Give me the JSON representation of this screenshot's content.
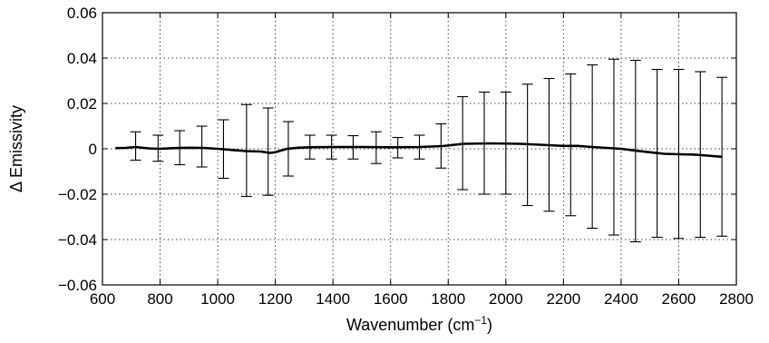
{
  "chart_data": {
    "type": "line",
    "xlabel": "Wavenumber (cm",
    "xlabel_sup": "−1",
    "xlabel_close": ")",
    "ylabel": "Δ Emissivity",
    "xlim": [
      600,
      2800
    ],
    "ylim": [
      -0.06,
      0.06
    ],
    "x_ticks": [
      600,
      800,
      1000,
      1200,
      1400,
      1600,
      1800,
      2000,
      2200,
      2400,
      2600,
      2800
    ],
    "y_ticks": [
      -0.06,
      -0.04,
      -0.02,
      0,
      0.02,
      0.04,
      0.06
    ],
    "x_tick_labels": [
      "600",
      "800",
      "1000",
      "1200",
      "1400",
      "1600",
      "1800",
      "2000",
      "2200",
      "2400",
      "2600",
      "2800"
    ],
    "y_tick_labels": [
      "−0.06",
      "−0.04",
      "−0.02",
      "0",
      "0.02",
      "0.04",
      "0.06"
    ],
    "grid": true,
    "line": {
      "x": [
        645,
        680,
        715,
        760,
        800,
        850,
        900,
        950,
        1000,
        1050,
        1100,
        1150,
        1180,
        1200,
        1240,
        1280,
        1320,
        1400,
        1500,
        1600,
        1700,
        1780,
        1850,
        1950,
        2050,
        2150,
        2200,
        2250,
        2300,
        2400,
        2450,
        2500,
        2550,
        2600,
        2650,
        2700,
        2750
      ],
      "y": [
        0.0003,
        0.0004,
        0.0008,
        0.0002,
        0.0,
        0.0003,
        0.0005,
        0.0004,
        0.0,
        -0.0005,
        -0.001,
        -0.0012,
        -0.0018,
        -0.0015,
        0.0,
        0.0005,
        0.0007,
        0.0008,
        0.0008,
        0.0007,
        0.0008,
        0.0012,
        0.0022,
        0.0024,
        0.0022,
        0.0016,
        0.0013,
        0.0013,
        0.0008,
        0.0,
        -0.0008,
        -0.0015,
        -0.0022,
        -0.0024,
        -0.0025,
        -0.003,
        -0.0035
      ]
    },
    "error_bars": [
      {
        "x": 715,
        "low": -0.005,
        "high": 0.0075
      },
      {
        "x": 793,
        "low": -0.0055,
        "high": 0.006
      },
      {
        "x": 868,
        "low": -0.007,
        "high": 0.008
      },
      {
        "x": 945,
        "low": -0.008,
        "high": 0.01
      },
      {
        "x": 1020,
        "low": -0.013,
        "high": 0.0128
      },
      {
        "x": 1100,
        "low": -0.021,
        "high": 0.0195
      },
      {
        "x": 1175,
        "low": -0.0205,
        "high": 0.018
      },
      {
        "x": 1245,
        "low": -0.012,
        "high": 0.012
      },
      {
        "x": 1320,
        "low": -0.0045,
        "high": 0.006
      },
      {
        "x": 1395,
        "low": -0.0045,
        "high": 0.006
      },
      {
        "x": 1470,
        "low": -0.0045,
        "high": 0.0058
      },
      {
        "x": 1550,
        "low": -0.0065,
        "high": 0.0075
      },
      {
        "x": 1625,
        "low": -0.004,
        "high": 0.005
      },
      {
        "x": 1700,
        "low": -0.0045,
        "high": 0.006
      },
      {
        "x": 1775,
        "low": -0.0085,
        "high": 0.011
      },
      {
        "x": 1850,
        "low": -0.018,
        "high": 0.023
      },
      {
        "x": 1925,
        "low": -0.02,
        "high": 0.025
      },
      {
        "x": 2000,
        "low": -0.02,
        "high": 0.025
      },
      {
        "x": 2075,
        "low": -0.025,
        "high": 0.0285
      },
      {
        "x": 2150,
        "low": -0.0275,
        "high": 0.031
      },
      {
        "x": 2225,
        "low": -0.0295,
        "high": 0.033
      },
      {
        "x": 2300,
        "low": -0.035,
        "high": 0.037
      },
      {
        "x": 2375,
        "low": -0.038,
        "high": 0.0395
      },
      {
        "x": 2450,
        "low": -0.041,
        "high": 0.039
      },
      {
        "x": 2525,
        "low": -0.039,
        "high": 0.035
      },
      {
        "x": 2600,
        "low": -0.0395,
        "high": 0.035
      },
      {
        "x": 2675,
        "low": -0.039,
        "high": 0.034
      },
      {
        "x": 2750,
        "low": -0.0385,
        "high": 0.0315
      }
    ]
  }
}
